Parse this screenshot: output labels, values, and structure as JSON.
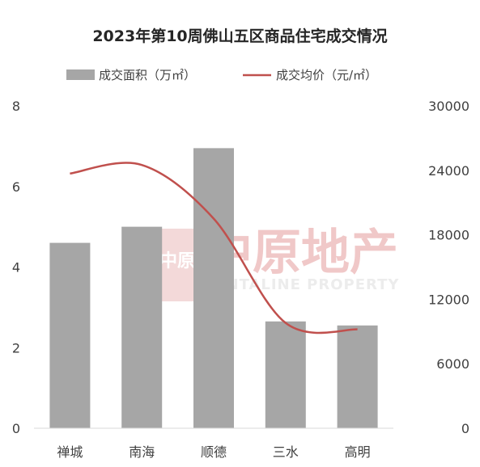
{
  "chart_data": {
    "type": "bar+line",
    "title": "2023年第10周佛山五区商品住宅成交情况",
    "categories": [
      "禅城",
      "南海",
      "顺德",
      "三水",
      "高明"
    ],
    "series": [
      {
        "name": "成交面积（万㎡）",
        "type": "bar",
        "axis": "left",
        "values": [
          4.6,
          5.0,
          6.95,
          2.65,
          2.55
        ],
        "color": "#a6a6a6"
      },
      {
        "name": "成交均价（元/㎡）",
        "type": "line",
        "axis": "right",
        "values": [
          23700,
          24500,
          19500,
          9800,
          9200
        ],
        "color": "#c0504d"
      }
    ],
    "y_left": {
      "min": 0,
      "max": 8,
      "ticks": [
        "0",
        "2",
        "4",
        "6",
        "8"
      ]
    },
    "y_right": {
      "min": 0,
      "max": 30000,
      "ticks": [
        "0",
        "6000",
        "12000",
        "18000",
        "24000",
        "30000"
      ]
    },
    "grid": false,
    "legend_position": "top"
  },
  "watermark": {
    "cn": "中原地产",
    "en": "CENTALINE PROPERTY",
    "logo_text": "中原"
  }
}
